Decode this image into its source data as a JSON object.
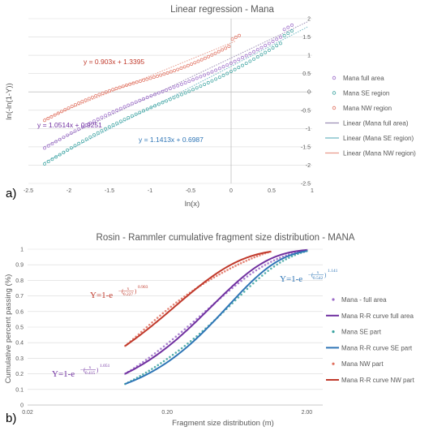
{
  "colors": {
    "full": "#7030A0",
    "se": "#2E75B6",
    "nw": "#C0392B",
    "se_marker": "#3BA3A0",
    "full_marker": "#9B6BC8",
    "nw_marker": "#E0705F",
    "full_trend": "#9C8FB5",
    "se_trend": "#6FB7C2",
    "nw_trend": "#E89A8C"
  },
  "panels": {
    "a": "a)",
    "b": "b)"
  },
  "chart_data": [
    {
      "type": "scatter",
      "title": "Linear regression - Mana",
      "xlabel": "ln(x)",
      "ylabel": "ln(-ln(1-Y))",
      "xlim": [
        -2.5,
        1
      ],
      "ylim": [
        -2.5,
        2
      ],
      "x_ticks": [
        "-2.5",
        "-2",
        "-1.5",
        "-1",
        "-0.5",
        "0",
        "0.5",
        "1"
      ],
      "y_ticks": [
        "-2.5",
        "-2",
        "-1.5",
        "-1",
        "-0.5",
        "0",
        "0.5",
        "1",
        "1.5",
        "2"
      ],
      "grid": "horizontal",
      "legend_position": "right",
      "series": [
        {
          "name": "Mana full area",
          "key": "full",
          "x_range": [
            -2.3,
            0.75
          ],
          "slope": 1.0514,
          "intercept": 0.9251
        },
        {
          "name": "Mana SE region",
          "key": "se",
          "x_range": [
            -2.3,
            0.75
          ],
          "slope": 1.1413,
          "intercept": 0.6987
        },
        {
          "name": "Mana NW region",
          "key": "nw",
          "x_range": [
            -2.3,
            0.1
          ],
          "slope": 0.903,
          "intercept": 1.3395
        }
      ],
      "trendlines": [
        {
          "name": "Linear (Mana full area)",
          "key": "full",
          "equation": "y = 1.0514x + 0.9251"
        },
        {
          "name": "Linear (Mana SE region)",
          "key": "se",
          "equation": "y = 1.1413x + 0.6987"
        },
        {
          "name": "Linear (Mana NW region)",
          "key": "nw",
          "equation": "y = 0.903x + 1.3395"
        }
      ]
    },
    {
      "type": "line",
      "title": "Rosin - Rammler cumulative fragment size distribution - MANA",
      "xlabel": "Fragment size distribution (m)",
      "ylabel": "Cumulative percent passing (%)",
      "x_scale": "log",
      "xlim": [
        0.02,
        2.6
      ],
      "ylim": [
        0,
        1
      ],
      "x_ticks": [
        "0.02",
        "0.20",
        "2.00"
      ],
      "y_ticks": [
        "0",
        "0.1",
        "0.2",
        "0.3",
        "0.4",
        "0.5",
        "0.6",
        "0.7",
        "0.8",
        "0.9",
        "1"
      ],
      "grid": "horizontal",
      "legend_position": "right",
      "series": [
        {
          "name": "Mana - full area",
          "key": "full",
          "kind": "markers",
          "x_range": [
            0.1,
            2.0
          ],
          "x0": 0.415,
          "n": 1.051
        },
        {
          "name": "Mana R-R curve full area",
          "key": "full",
          "kind": "curve",
          "x_range": [
            0.1,
            2.0
          ],
          "x0": 0.415,
          "n": 1.051
        },
        {
          "name": "Mana SE part",
          "key": "se",
          "kind": "markers",
          "x_range": [
            0.1,
            2.0
          ],
          "x0": 0.542,
          "n": 1.141
        },
        {
          "name": "Mana R-R curve SE part",
          "key": "se",
          "kind": "curve",
          "x_range": [
            0.1,
            2.0
          ],
          "x0": 0.542,
          "n": 1.141
        },
        {
          "name": "Mana NW part",
          "key": "nw",
          "kind": "markers",
          "x_range": [
            0.1,
            1.1
          ],
          "x0": 0.227,
          "n": 0.903
        },
        {
          "name": "Mana R-R curve NW part",
          "key": "nw",
          "kind": "curve",
          "x_range": [
            0.1,
            1.1
          ],
          "x0": 0.227,
          "n": 0.903
        }
      ],
      "equations": [
        {
          "key": "nw",
          "prefix": "Y=1-",
          "base": "e",
          "sign": "−",
          "num": "x",
          "den": "0.227",
          "exp": "0.903"
        },
        {
          "key": "se",
          "prefix": "Y=1-",
          "base": "e",
          "sign": "−",
          "num": "x",
          "den": "0.542",
          "exp": "1.141"
        },
        {
          "key": "full",
          "prefix": "Y=1-",
          "base": "e",
          "sign": "−",
          "num": "x",
          "den": "0.415",
          "exp": "1.051"
        }
      ]
    }
  ]
}
